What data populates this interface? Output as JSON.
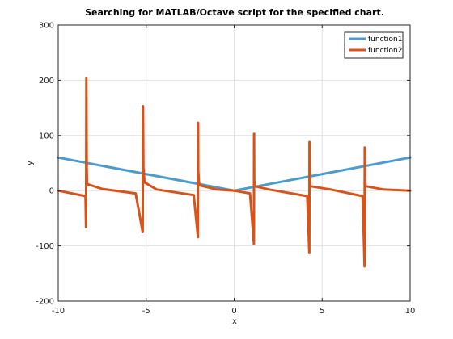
{
  "chart_data": {
    "type": "line",
    "title": "Searching for MATLAB/Octave script for the specified chart.",
    "xlabel": "x",
    "ylabel": "y",
    "xlim": [
      -10,
      10
    ],
    "ylim": [
      -200,
      300
    ],
    "x_ticks": [
      -10,
      -5,
      0,
      5,
      10
    ],
    "y_ticks": [
      -200,
      -100,
      0,
      100,
      200,
      300
    ],
    "grid": true,
    "legend_location": "top-right",
    "series": [
      {
        "name": "function1",
        "color": "#4a9cd0",
        "x": [
          -10,
          0,
          10
        ],
        "y": [
          60,
          0,
          60
        ]
      },
      {
        "name": "function2",
        "color": "#d95319",
        "x": [
          -10,
          -8.45,
          -8.42,
          -8.4,
          -8.38,
          -8.36,
          -7.5,
          -5.6,
          -5.2,
          -5.18,
          -5.16,
          -5.1,
          -4.4,
          -2.3,
          -2.06,
          -2.05,
          -2.04,
          -1.99,
          -1.0,
          0,
          0.9,
          1.12,
          1.13,
          1.14,
          1.17,
          2.0,
          4.15,
          4.27,
          4.28,
          4.29,
          4.32,
          5.5,
          7.3,
          7.41,
          7.42,
          7.43,
          7.47,
          8.5,
          10
        ],
        "y": [
          0,
          -10,
          -66,
          203,
          40,
          12,
          3,
          -5,
          -75,
          153,
          42,
          15,
          2,
          -8,
          -84,
          123,
          35,
          10,
          2,
          0,
          -5,
          -96,
          103,
          20,
          8,
          2,
          -10,
          -113,
          88,
          25,
          8,
          2,
          -10,
          -137,
          78,
          22,
          8,
          2,
          0
        ]
      }
    ]
  }
}
